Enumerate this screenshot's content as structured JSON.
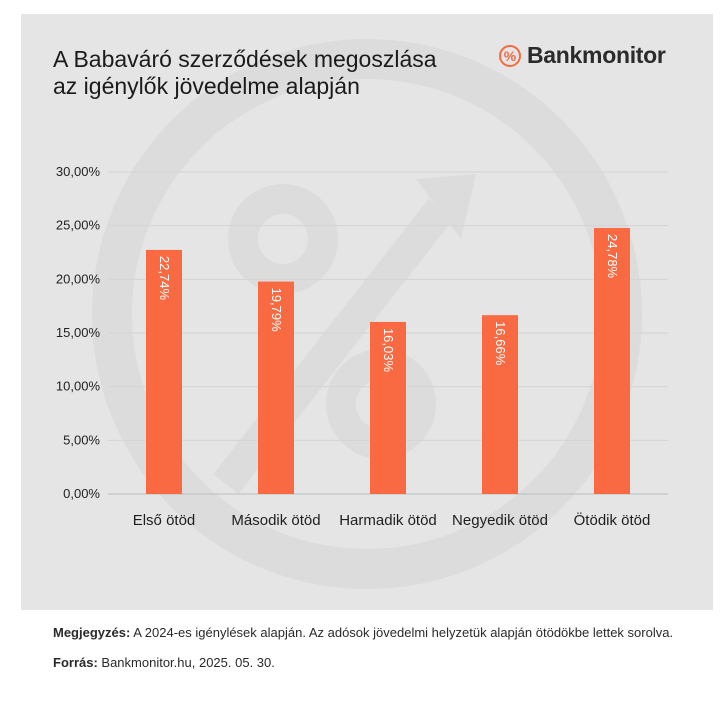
{
  "title_lines": [
    "A Babaváró szerződések megoszlása",
    "az igénylők jövedelme alapján"
  ],
  "brand": {
    "icon": "percent-icon",
    "icon_glyph": "%",
    "name": "Bankmonitor",
    "color": "#f26b43"
  },
  "chart_data": {
    "type": "bar",
    "title": "A Babaváró szerződések megoszlása az igénylők jövedelme alapján",
    "categories": [
      "Első ötöd",
      "Második ötöd",
      "Harmadik ötöd",
      "Negyedik ötöd",
      "Ötödik ötöd"
    ],
    "values": [
      22.74,
      19.79,
      16.03,
      16.66,
      24.78
    ],
    "value_labels": [
      "22,74%",
      "19,79%",
      "16,03%",
      "16,66%",
      "24,78%"
    ],
    "ylim": [
      0,
      30
    ],
    "yticks": [
      0,
      5,
      10,
      15,
      20,
      25,
      30
    ],
    "ytick_labels": [
      "0,00%",
      "5,00%",
      "10,00%",
      "15,00%",
      "20,00%",
      "25,00%",
      "30,00%"
    ],
    "xlabel": "",
    "ylabel": "",
    "grid": true,
    "bar_color": "#f96a42"
  },
  "notes": {
    "note_label": "Megjegyzés:",
    "note_text": " A 2024-es igénylések alapján. Az adósok jövedelmi helyzetük alapján ötödökbe lettek sorolva.",
    "source_label": "Forrás:",
    "source_text": " Bankmonitor.hu, 2025. 05. 30."
  }
}
